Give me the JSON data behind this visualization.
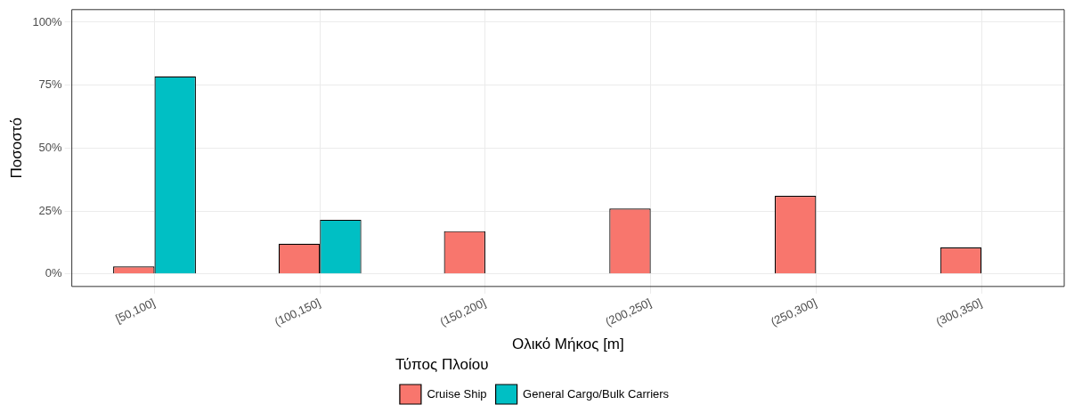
{
  "chart_data": {
    "type": "bar",
    "xlabel": "Ολικό Μήκος [m]",
    "ylabel": "Ποσοστό",
    "legend_title": "Τύπος Πλοίου",
    "categories": [
      "[50,100]",
      "(100,150]",
      "(150,200]",
      "(200,250]",
      "(250,300]",
      "(300,350]"
    ],
    "series": [
      {
        "name": "Cruise Ship",
        "color": "#f8766d",
        "values": [
          3,
          12,
          17,
          26,
          31,
          10.5
        ]
      },
      {
        "name": "General Cargo/Bulk Carriers",
        "color": "#00bfc4",
        "values": [
          78.5,
          21.5,
          0,
          0,
          0,
          0
        ]
      }
    ],
    "ylim": [
      -5,
      105
    ],
    "yticks": [
      {
        "value": 0,
        "label": "0%"
      },
      {
        "value": 25,
        "label": "25%"
      },
      {
        "value": 50,
        "label": "50%"
      },
      {
        "value": 75,
        "label": "75%"
      },
      {
        "value": 100,
        "label": "100%"
      }
    ],
    "grid": true,
    "legend": "bottom"
  }
}
